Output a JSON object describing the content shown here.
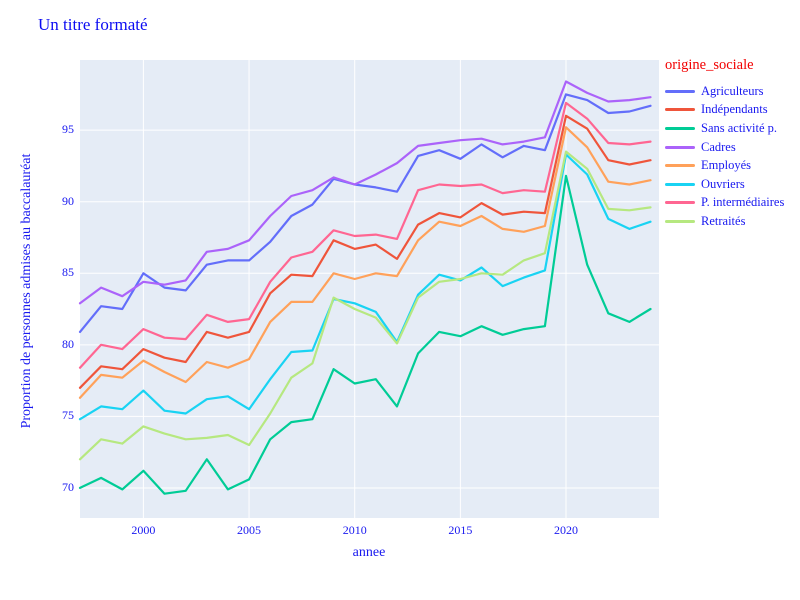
{
  "chart": {
    "title": "Un titre formaté",
    "xlabel": "annee",
    "ylabel": "Proportion de personnes admises au baccalauréat",
    "legend_title": "origine_sociale"
  },
  "colors": {
    "plot_background": "#E5ECF6",
    "gridline": "#FFFFFF",
    "title_text": "#0B0BF2",
    "axis_text": "#1919F0",
    "legend_title_text": "#F20000"
  },
  "chart_data": {
    "type": "line",
    "title": "Un titre formaté",
    "xlabel": "annee",
    "ylabel": "Proportion de personnes admises au baccalauréat",
    "legend_title": "origine_sociale",
    "legend_position": "right",
    "grid": true,
    "xlim": [
      1997,
      2024.4
    ],
    "ylim": [
      67.9,
      99.9
    ],
    "xticks": [
      2000,
      2005,
      2010,
      2015,
      2020
    ],
    "yticks": [
      70,
      75,
      80,
      85,
      90,
      95
    ],
    "x": [
      1997,
      1998,
      1999,
      2000,
      2001,
      2002,
      2003,
      2004,
      2005,
      2006,
      2007,
      2008,
      2009,
      2010,
      2011,
      2012,
      2013,
      2014,
      2015,
      2016,
      2017,
      2018,
      2019,
      2020,
      2021,
      2022,
      2023,
      2024
    ],
    "series": [
      {
        "name": "Agriculteurs",
        "color": "#636EFA",
        "values": [
          80.9,
          82.7,
          82.5,
          85.0,
          84.0,
          83.8,
          85.6,
          85.9,
          85.9,
          87.2,
          89.0,
          89.8,
          91.6,
          91.2,
          91.0,
          90.7,
          93.2,
          93.6,
          93.0,
          94.0,
          93.1,
          93.9,
          93.6,
          97.5,
          97.1,
          96.2,
          96.3,
          96.7
        ]
      },
      {
        "name": "Indépendants",
        "color": "#EF553B",
        "values": [
          77.0,
          78.5,
          78.3,
          79.7,
          79.1,
          78.8,
          80.9,
          80.5,
          80.9,
          83.6,
          84.9,
          84.8,
          87.3,
          86.7,
          87.0,
          86.0,
          88.4,
          89.2,
          88.9,
          89.9,
          89.1,
          89.3,
          89.2,
          96.0,
          95.1,
          92.9,
          92.6,
          92.9
        ]
      },
      {
        "name": "Sans activité p.",
        "color": "#00CC96",
        "values": [
          70.0,
          70.7,
          69.9,
          71.2,
          69.6,
          69.8,
          72.0,
          69.9,
          70.6,
          73.4,
          74.6,
          74.8,
          78.3,
          77.3,
          77.6,
          75.7,
          79.4,
          80.9,
          80.6,
          81.3,
          80.7,
          81.1,
          81.3,
          91.8,
          85.6,
          82.2,
          81.6,
          82.5
        ]
      },
      {
        "name": "Cadres",
        "color": "#AB63FA",
        "values": [
          82.9,
          84.0,
          83.4,
          84.4,
          84.2,
          84.5,
          86.5,
          86.7,
          87.3,
          89.0,
          90.4,
          90.8,
          91.7,
          91.2,
          91.9,
          92.7,
          93.9,
          94.1,
          94.3,
          94.4,
          94.0,
          94.2,
          94.5,
          98.4,
          97.6,
          97.0,
          97.1,
          97.3
        ]
      },
      {
        "name": "Employés",
        "color": "#FFA15A",
        "values": [
          76.3,
          77.9,
          77.7,
          78.9,
          78.1,
          77.4,
          78.8,
          78.4,
          79.0,
          81.6,
          83.0,
          83.0,
          85.0,
          84.6,
          85.0,
          84.8,
          87.3,
          88.6,
          88.3,
          89.0,
          88.1,
          87.9,
          88.3,
          95.2,
          93.8,
          91.4,
          91.2,
          91.5
        ]
      },
      {
        "name": "Ouvriers",
        "color": "#19D3F3",
        "values": [
          74.8,
          75.7,
          75.5,
          76.8,
          75.4,
          75.2,
          76.2,
          76.4,
          75.5,
          77.6,
          79.5,
          79.6,
          83.2,
          82.9,
          82.3,
          80.2,
          83.5,
          84.9,
          84.5,
          85.4,
          84.1,
          84.7,
          85.2,
          93.3,
          91.9,
          88.8,
          88.1,
          88.6
        ]
      },
      {
        "name": "P. intermédiaires",
        "color": "#FF6692",
        "values": [
          78.4,
          80.0,
          79.7,
          81.1,
          80.5,
          80.4,
          82.1,
          81.6,
          81.8,
          84.4,
          86.1,
          86.5,
          88.0,
          87.6,
          87.7,
          87.4,
          90.8,
          91.2,
          91.1,
          91.2,
          90.6,
          90.8,
          90.7,
          96.9,
          95.8,
          94.1,
          94.0,
          94.2
        ]
      },
      {
        "name": "Retraités",
        "color": "#B6E880",
        "values": [
          72.0,
          73.4,
          73.1,
          74.3,
          73.8,
          73.4,
          73.5,
          73.7,
          73.0,
          75.2,
          77.7,
          78.7,
          83.3,
          82.5,
          81.9,
          80.1,
          83.3,
          84.4,
          84.6,
          85.0,
          84.9,
          85.9,
          86.4,
          93.5,
          92.3,
          89.5,
          89.4,
          89.6
        ]
      }
    ]
  }
}
